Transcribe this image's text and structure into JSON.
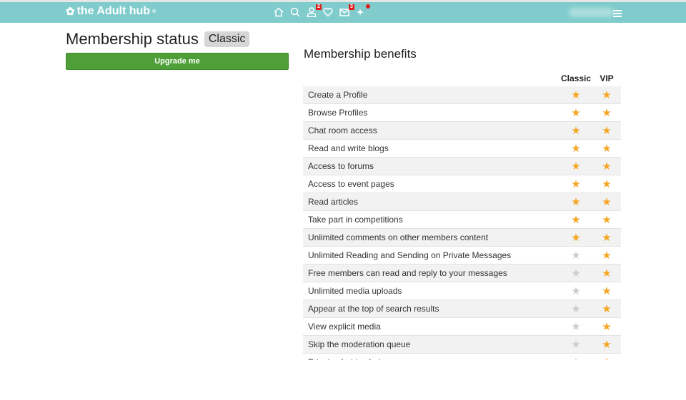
{
  "header": {
    "logo": "the Adult hub",
    "badges": {
      "profile": "2",
      "messages": "3"
    }
  },
  "page": {
    "title": "Membership status",
    "level": "Classic",
    "upgrade_label": "Upgrade me"
  },
  "benefits": {
    "title": "Membership benefits",
    "columns": [
      "Classic",
      "VIP"
    ],
    "colors": {
      "on": "#f5a623",
      "off": "#cccccc"
    },
    "rows": [
      {
        "label": "Create a Profile",
        "classic": true,
        "vip": true
      },
      {
        "label": "Browse Profiles",
        "classic": true,
        "vip": true
      },
      {
        "label": "Chat room access",
        "classic": true,
        "vip": true
      },
      {
        "label": "Read and write blogs",
        "classic": true,
        "vip": true
      },
      {
        "label": "Access to forums",
        "classic": true,
        "vip": true
      },
      {
        "label": "Access to event pages",
        "classic": true,
        "vip": true
      },
      {
        "label": "Read articles",
        "classic": true,
        "vip": true
      },
      {
        "label": "Take part in competitions",
        "classic": true,
        "vip": true
      },
      {
        "label": "Unlimited comments on other members content",
        "classic": true,
        "vip": true
      },
      {
        "label": "Unlimited Reading and Sending on Private Messages",
        "classic": false,
        "vip": true
      },
      {
        "label": "Free members can read and reply to your messages",
        "classic": false,
        "vip": true
      },
      {
        "label": "Unlimited media uploads",
        "classic": false,
        "vip": true
      },
      {
        "label": "Appear at the top of search results",
        "classic": false,
        "vip": true
      },
      {
        "label": "View explicit media",
        "classic": false,
        "vip": true
      },
      {
        "label": "Skip the moderation queue",
        "classic": false,
        "vip": true
      },
      {
        "label": "Private chat in chat rooms",
        "classic": false,
        "vip": true
      }
    ]
  }
}
